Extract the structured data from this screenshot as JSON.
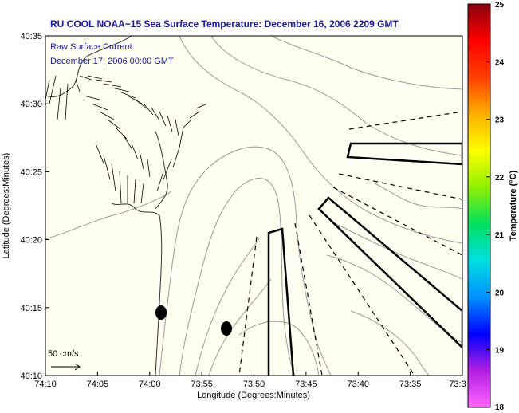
{
  "title": "RU COOL  NOAA−15  Sea Surface Temperature:  December 16, 2006 2209 GMT",
  "annotation": {
    "line1": "Raw Surface Current:",
    "line2": "December 17, 2006 00:00 GMT"
  },
  "scale_label": "50 cm/s",
  "x_axis": {
    "label": "Longitude (Degrees:Minutes)",
    "ticks": [
      "74:10",
      "74:05",
      "74:00",
      "73:55",
      "73:50",
      "73:45",
      "73:40",
      "73:35",
      "73:3"
    ]
  },
  "y_axis": {
    "label": "Latitude (Degrees:Minutes)",
    "ticks": [
      "40:35",
      "40:30",
      "40:25",
      "40:20",
      "40:15",
      "40:10"
    ]
  },
  "colorbar": {
    "label": "Temperature (°C)",
    "ticks": [
      "25",
      "24",
      "23",
      "22",
      "21",
      "20",
      "19",
      "18"
    ],
    "range": [
      18,
      25
    ],
    "colors": [
      "#ff66ff",
      "#b020e0",
      "#0000ff",
      "#0090ff",
      "#00e0e0",
      "#00e060",
      "#90f000",
      "#ffff00",
      "#ffb000",
      "#ff4000",
      "#ff0000",
      "#8a0010"
    ]
  },
  "colors": {
    "background": "#fffff2",
    "title_text": "#1a1a9a",
    "contour": "#9a9a9a"
  }
}
